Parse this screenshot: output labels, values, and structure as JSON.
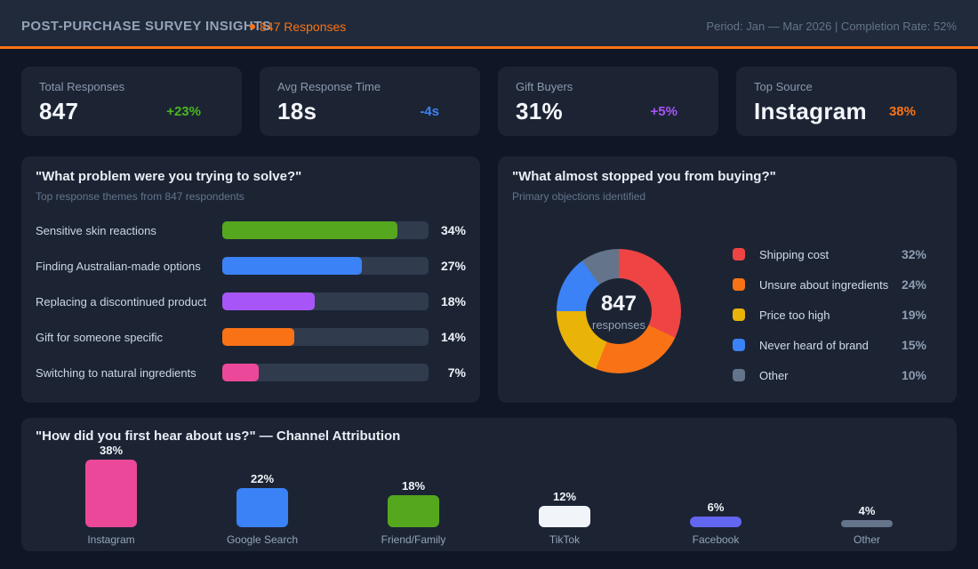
{
  "header": {
    "title": "POST-PURCHASE SURVEY INSIGHTS",
    "responses_badge": "847 Responses",
    "period_info": "Period: Jan — Mar 2026  |  Completion Rate: 52%"
  },
  "kpis": [
    {
      "label": "Total Responses",
      "value": "847",
      "delta": "+23%",
      "delta_color": "#4cb41e"
    },
    {
      "label": "Avg Response Time",
      "value": "18s",
      "delta": "-4s",
      "delta_color": "#3b82f6"
    },
    {
      "label": "Gift Buyers",
      "value": "31%",
      "delta": "+5%",
      "delta_color": "#a855f7"
    },
    {
      "label": "Top Source",
      "value": "Instagram",
      "delta": "38%",
      "delta_color": "#f97316"
    }
  ],
  "chart_data": [
    {
      "id": "problem_themes",
      "type": "bar",
      "orientation": "horizontal",
      "title": "\"What problem were you trying to solve?\"",
      "subtitle": "Top response themes from 847 respondents",
      "categories": [
        "Sensitive skin reactions",
        "Finding Australian-made options",
        "Replacing a discontinued product",
        "Gift for someone specific",
        "Switching to natural ingredients"
      ],
      "values": [
        34,
        27,
        18,
        14,
        7
      ],
      "value_labels": [
        "34%",
        "27%",
        "18%",
        "14%",
        "7%"
      ],
      "colors": [
        "#55a81e",
        "#3b82f6",
        "#a855f7",
        "#f97316",
        "#ec4899"
      ],
      "xlim": [
        0,
        40
      ],
      "grid": false
    },
    {
      "id": "objections",
      "type": "pie",
      "title": "\"What almost stopped you from buying?\"",
      "subtitle": "Primary objections identified",
      "center_value": "847",
      "center_label": "responses",
      "labels": [
        "Shipping cost",
        "Unsure about ingredients",
        "Price too high",
        "Never heard of brand",
        "Other"
      ],
      "values": [
        32,
        24,
        19,
        15,
        10
      ],
      "value_labels": [
        "32%",
        "24%",
        "19%",
        "15%",
        "10%"
      ],
      "colors": [
        "#ef4444",
        "#f97316",
        "#eab308",
        "#3b82f6",
        "#64748b"
      ],
      "legend_position": "right",
      "donut": true
    },
    {
      "id": "channels",
      "type": "bar",
      "orientation": "vertical",
      "title": "\"How did you first hear about us?\" — Channel Attribution",
      "categories": [
        "Instagram",
        "Google Search",
        "Friend/Family",
        "TikTok",
        "Facebook",
        "Other"
      ],
      "values": [
        38,
        22,
        18,
        12,
        6,
        4
      ],
      "value_labels": [
        "38%",
        "22%",
        "18%",
        "12%",
        "6%",
        "4%"
      ],
      "colors": [
        "#ec4899",
        "#3b82f6",
        "#55a81e",
        "#f1f5f9",
        "#6366f1",
        "#64748b"
      ],
      "ylim": [
        0,
        40
      ]
    }
  ]
}
